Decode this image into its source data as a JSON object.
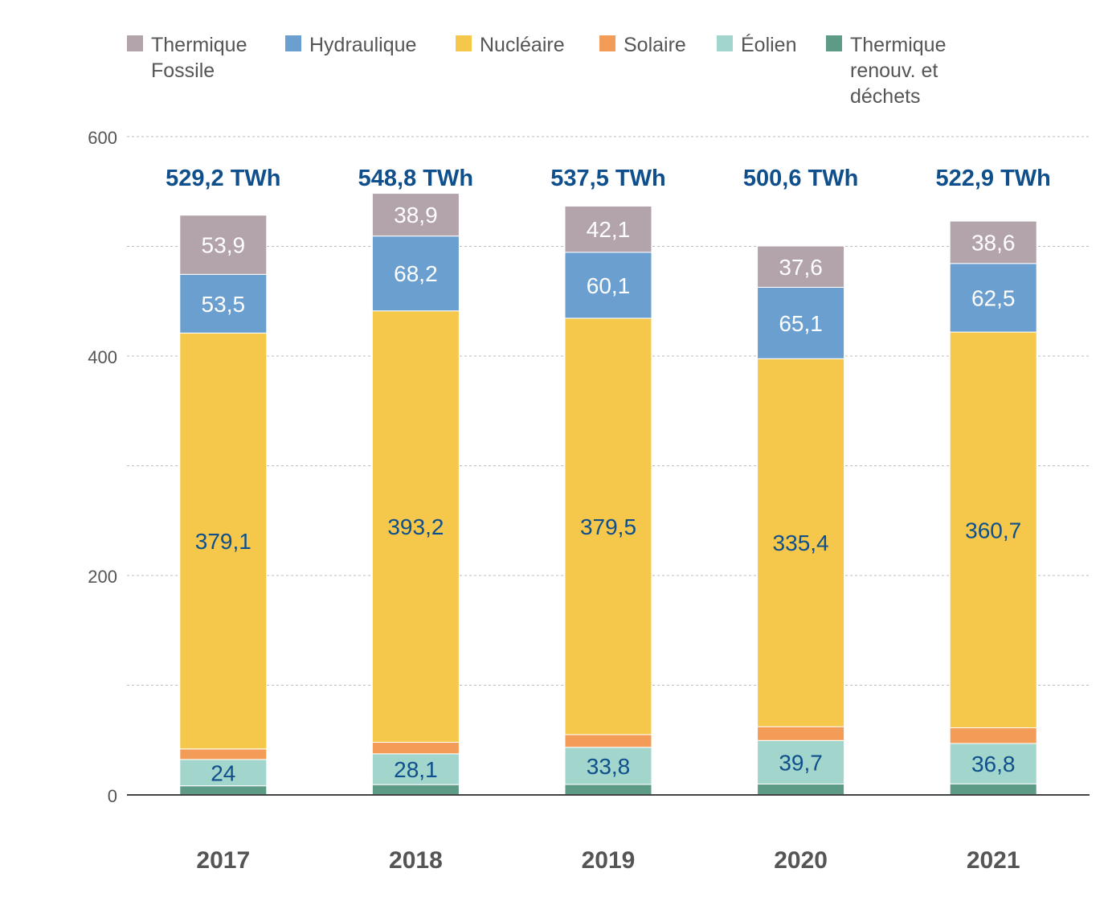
{
  "chart_data": {
    "type": "bar",
    "stacked": true,
    "categories": [
      "2017",
      "2018",
      "2019",
      "2020",
      "2021"
    ],
    "totals": [
      "529,2 TWh",
      "548,8 TWh",
      "537,5 TWh",
      "500,6 TWh",
      "522,9 TWh"
    ],
    "total_values": [
      529.2,
      548.8,
      537.5,
      500.6,
      522.9
    ],
    "ylim": [
      0,
      600
    ],
    "y_ticks": [
      0,
      200,
      400,
      600
    ],
    "grid": true,
    "legend_position": "top",
    "series": [
      {
        "name": "Thermique renouv. et déchets",
        "color": "#5e9b86",
        "values": [
          8.3,
          9.4,
          9.6,
          9.9,
          10.1
        ],
        "labels": [
          "",
          "",
          "",
          "",
          ""
        ],
        "label_color": "#ffffff"
      },
      {
        "name": "Éolien",
        "color": "#a2d5cc",
        "values": [
          24,
          28.1,
          33.8,
          39.7,
          36.8
        ],
        "labels": [
          "24",
          "28,1",
          "33,8",
          "39,7",
          "36,8"
        ],
        "label_color": "#0f4f8c"
      },
      {
        "name": "Solaire",
        "color": "#f39c57",
        "values": [
          9.6,
          10.5,
          11.6,
          12.6,
          14.3
        ],
        "labels": [
          "",
          "",
          "",
          "",
          ""
        ],
        "label_color": "#ffffff"
      },
      {
        "name": "Nucléaire",
        "color": "#f5c84c",
        "values": [
          379.1,
          393.2,
          379.5,
          335.4,
          360.7
        ],
        "labels": [
          "379,1",
          "393,2",
          "379,5",
          "335,4",
          "360,7"
        ],
        "label_color": "#0f4f8c"
      },
      {
        "name": "Hydraulique",
        "color": "#6a9fd0",
        "values": [
          53.5,
          68.2,
          60.1,
          65.1,
          62.5
        ],
        "labels": [
          "53,5",
          "68,2",
          "60,1",
          "65,1",
          "62,5"
        ],
        "label_color": "#ffffff"
      },
      {
        "name": "Thermique Fossile",
        "color": "#b3a3ab",
        "values": [
          53.9,
          38.9,
          42.1,
          37.6,
          38.6
        ],
        "labels": [
          "53,9",
          "38,9",
          "42,1",
          "37,6",
          "38,6"
        ],
        "label_color": "#ffffff"
      }
    ],
    "legend": [
      {
        "label": "Thermique\nFossile",
        "color": "#b3a3ab"
      },
      {
        "label": "Hydraulique",
        "color": "#6a9fd0"
      },
      {
        "label": "Nucléaire",
        "color": "#f5c84c"
      },
      {
        "label": "Solaire",
        "color": "#f39c57"
      },
      {
        "label": "Éolien",
        "color": "#a2d5cc"
      },
      {
        "label": "Thermique\nrenouv. et\ndéchets",
        "color": "#5e9b86"
      }
    ],
    "colors": {
      "total_label": "#0f4f8c",
      "axis_text": "#555555",
      "grid": "#bbbbbb",
      "axis_line": "#444444"
    }
  }
}
